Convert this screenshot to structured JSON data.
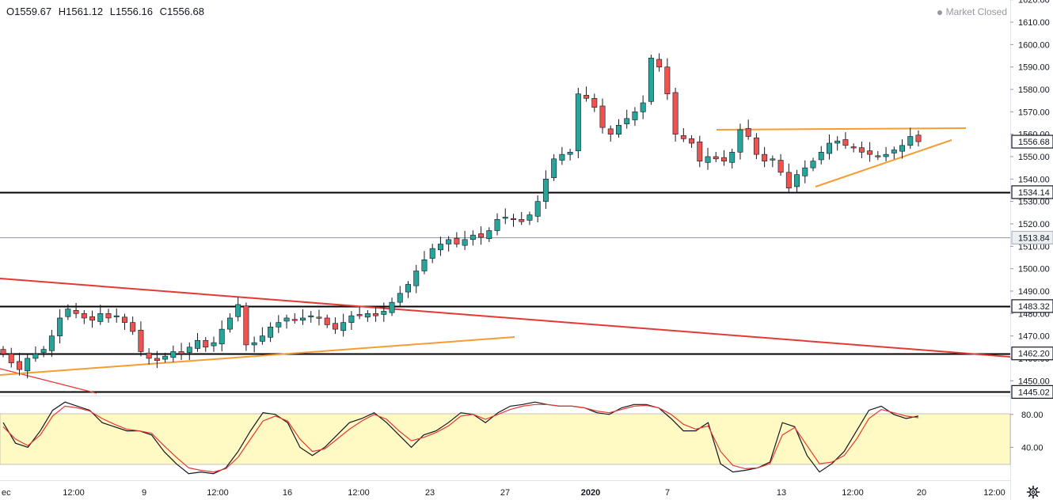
{
  "header": {
    "open": "O1559.67",
    "high": "H1561.12",
    "low": "L1556.16",
    "close": "C1556.68",
    "market_status": "Market Closed"
  },
  "colors": {
    "up": "#26a69a",
    "down": "#ef5350",
    "trendline_red": "#e53935",
    "trendline_orange": "#f59c34",
    "stoch_k": "#131722",
    "stoch_d": "#e53935",
    "stoch_band": "#fff9c4"
  },
  "price_axis": {
    "ticks": [
      "1620.00",
      "1610.00",
      "1600.00",
      "1590.00",
      "1580.00",
      "1570.00",
      "1560.00",
      "1550.00",
      "1540.00",
      "1530.00",
      "1520.00",
      "1510.00",
      "1500.00",
      "1490.00",
      "1480.00",
      "1470.00",
      "1460.00",
      "1450.00"
    ],
    "badges": [
      "1556.68",
      "1534.14",
      "1513.84",
      "1483.32",
      "1462.20",
      "1445.02"
    ]
  },
  "osc_axis": {
    "ticks": [
      "80.00",
      "40.00"
    ]
  },
  "time_axis": {
    "ticks": [
      "ec",
      "12:00",
      "9",
      "12:00",
      "16",
      "12:00",
      "23",
      "27",
      "2020",
      "7",
      "13",
      "12:00",
      "20",
      "12:00"
    ]
  },
  "icons": {
    "settings": "gear-icon"
  },
  "chart_data": [
    {
      "type": "candlestick",
      "title": "",
      "ylim": [
        1445,
        1622
      ],
      "x_ticks": [
        "ec",
        "12:00",
        "9",
        "12:00",
        "16",
        "12:00",
        "23",
        "27",
        "2020",
        "7",
        "13",
        "12:00",
        "20",
        "12:00"
      ],
      "close_series": [
        1462,
        1458,
        1455,
        1460,
        1462,
        1464,
        1470,
        1478,
        1482,
        1480,
        1478,
        1477,
        1480,
        1478,
        1479,
        1476,
        1472,
        1463,
        1460,
        1459,
        1461,
        1463,
        1462,
        1465,
        1468,
        1465,
        1467,
        1473,
        1478,
        1484,
        1466,
        1467,
        1470,
        1474,
        1476,
        1478,
        1477,
        1478,
        1479,
        1478,
        1475,
        1473,
        1476,
        1479,
        1479,
        1480,
        1479,
        1481,
        1485,
        1489,
        1493,
        1499,
        1504,
        1509,
        1511,
        1513,
        1511,
        1513,
        1515,
        1514,
        1517,
        1522,
        1523,
        1522,
        1521,
        1524,
        1530,
        1540,
        1549,
        1551,
        1552,
        1578,
        1576,
        1572,
        1563,
        1560,
        1564,
        1567,
        1570,
        1574,
        1594,
        1590,
        1578,
        1560,
        1558,
        1556,
        1548,
        1550,
        1549,
        1548,
        1552,
        1562,
        1559,
        1551,
        1548,
        1549,
        1543,
        1536,
        1542,
        1545,
        1548,
        1552,
        1556,
        1557,
        1555,
        1554,
        1552,
        1551,
        1550,
        1551,
        1553,
        1555,
        1559,
        1556.68
      ],
      "horizontal_levels": [
        1534.14,
        1513.84,
        1483.32,
        1462.2,
        1445.02
      ],
      "resistance_level": 1562,
      "last_price": 1556.68
    },
    {
      "type": "line",
      "title": "",
      "ylim": [
        0,
        100
      ],
      "y_ticks": [
        80,
        40
      ],
      "band": [
        20,
        80
      ],
      "series": [
        {
          "values": [
            70,
            45,
            40,
            60,
            85,
            95,
            90,
            85,
            70,
            65,
            60,
            60,
            55,
            35,
            20,
            8,
            10,
            8,
            15,
            35,
            60,
            82,
            80,
            70,
            40,
            30,
            40,
            55,
            70,
            75,
            82,
            70,
            55,
            40,
            55,
            60,
            70,
            82,
            80,
            70,
            82,
            90,
            92,
            95,
            92,
            90,
            90,
            88,
            82,
            80,
            88,
            92,
            92,
            88,
            75,
            60,
            60,
            70,
            20,
            10,
            12,
            15,
            22,
            70,
            65,
            30,
            10,
            20,
            35,
            60,
            85,
            90,
            80,
            75,
            78
          ]
        },
        {
          "values": [
            65,
            50,
            42,
            55,
            78,
            90,
            88,
            84,
            75,
            68,
            62,
            60,
            57,
            42,
            28,
            15,
            12,
            10,
            14,
            28,
            50,
            72,
            78,
            72,
            50,
            35,
            38,
            50,
            62,
            72,
            80,
            74,
            60,
            48,
            52,
            58,
            66,
            78,
            80,
            74,
            80,
            86,
            90,
            92,
            92,
            90,
            90,
            88,
            84,
            82,
            86,
            90,
            91,
            88,
            80,
            68,
            62,
            66,
            35,
            18,
            14,
            15,
            20,
            55,
            64,
            42,
            20,
            22,
            30,
            50,
            75,
            86,
            82,
            78,
            76
          ]
        }
      ]
    }
  ]
}
